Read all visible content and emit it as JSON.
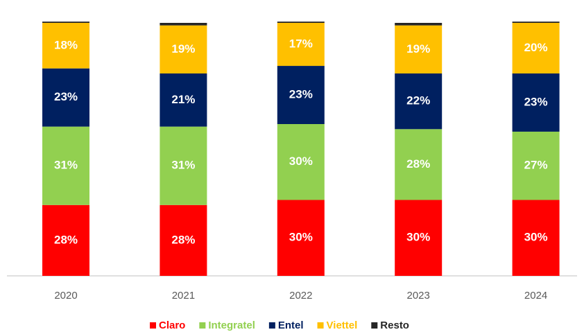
{
  "chart_data": {
    "type": "bar",
    "stacked": true,
    "categories": [
      "2020",
      "2021",
      "2022",
      "2023",
      "2024"
    ],
    "ylim": [
      0,
      100
    ],
    "series": [
      {
        "name": "Claro",
        "color": "#ff0000",
        "values": [
          28,
          28,
          30,
          30,
          30
        ],
        "value_labels": [
          "28%",
          "28%",
          "30%",
          "30%",
          "30%"
        ]
      },
      {
        "name": "Integratel",
        "color": "#92d050",
        "values": [
          31,
          31,
          30,
          28,
          27
        ],
        "value_labels": [
          "31%",
          "31%",
          "30%",
          "28%",
          "27%"
        ]
      },
      {
        "name": "Entel",
        "color": "#002060",
        "values": [
          23,
          21,
          23,
          22,
          23
        ],
        "value_labels": [
          "23%",
          "21%",
          "23%",
          "22%",
          "23%"
        ]
      },
      {
        "name": "Viettel",
        "color": "#ffc000",
        "values": [
          18,
          19,
          17,
          19,
          20
        ],
        "value_labels": [
          "18%",
          "19%",
          "17%",
          "19%",
          "20%"
        ]
      },
      {
        "name": "Resto",
        "color": "#262626",
        "values": [
          0.5,
          1,
          0.5,
          1,
          0.5
        ]
      }
    ],
    "legend": "bottom"
  }
}
